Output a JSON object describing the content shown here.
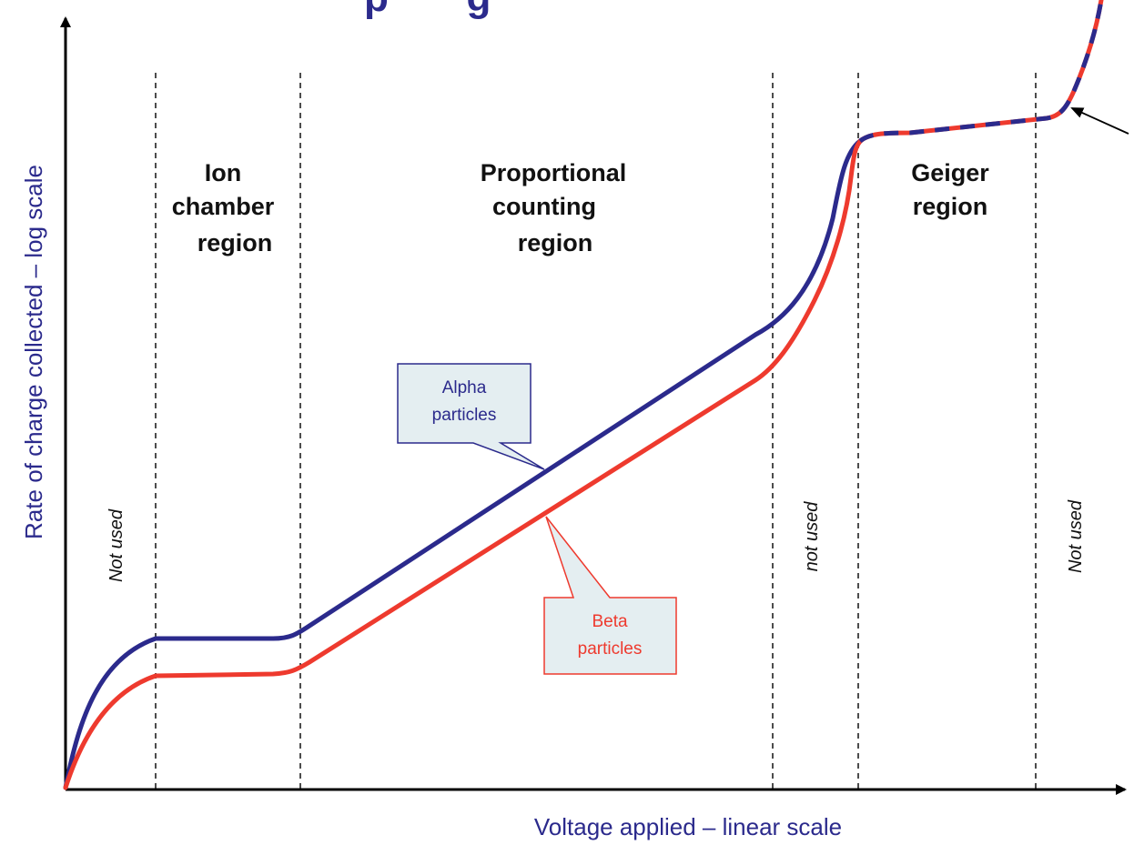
{
  "title_fragment": "p       g",
  "axes": {
    "x_label": "Voltage applied – linear scale",
    "y_label": "Rate of charge collected – log scale"
  },
  "regions": [
    {
      "lines": [
        "Ion",
        "chamber",
        "region"
      ]
    },
    {
      "lines": [
        "Proportional",
        "counting",
        "region"
      ]
    },
    {
      "lines": [
        "Geiger",
        "region"
      ]
    }
  ],
  "not_used_labels": [
    "Not used",
    "not used",
    "Not used"
  ],
  "callouts": {
    "alpha": {
      "lines": [
        "Alpha",
        "particles"
      ]
    },
    "beta": {
      "lines": [
        "Beta",
        "particles"
      ]
    }
  },
  "colors": {
    "alpha": "#2b2a8c",
    "beta": "#ee3a2e",
    "axis_label": "#2b2a8c",
    "title": "#2b2a8c",
    "callout_fill": "#e4eef1",
    "alpha_callout_border": "#2b2a8c",
    "beta_callout_border": "#ee3a2e"
  }
}
